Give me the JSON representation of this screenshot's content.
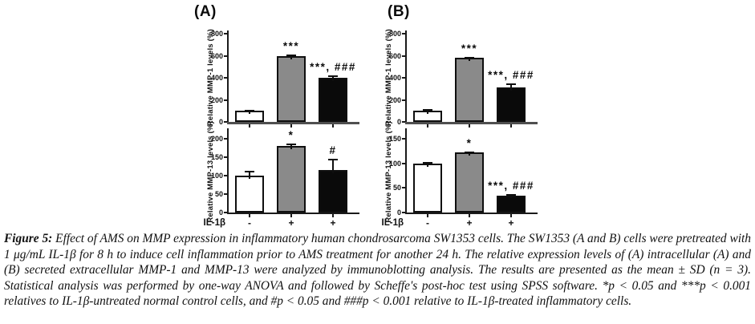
{
  "figure": {
    "panels": [
      {
        "label": "(A)",
        "x_axis_label": "IL-1β"
      },
      {
        "label": "(B)",
        "x_axis_label": "IL-1β"
      }
    ]
  },
  "chart_data": [
    {
      "id": "a-mmp1",
      "panel": "A",
      "row": "top",
      "type": "bar",
      "ylabel": "Relative MMP-1 levels (%)",
      "yticks": [
        0,
        200,
        400,
        600,
        800
      ],
      "ylim": [
        0,
        830
      ],
      "categories": [
        "-",
        "+",
        "+"
      ],
      "series": [
        {
          "name": "MMP-1 (A)",
          "values": [
            100,
            600,
            400
          ],
          "errors": [
            10,
            10,
            20
          ]
        }
      ],
      "annotations": [
        "",
        "***",
        "***, ###"
      ],
      "bar_colors": [
        "#ffffff",
        "#8a8a8a",
        "#0a0a0a"
      ],
      "legend": "none",
      "grid": false
    },
    {
      "id": "a-mmp13",
      "panel": "A",
      "row": "bottom",
      "type": "bar",
      "ylabel": "Relative MMP-13 levels (%)",
      "yticks": [
        0,
        50,
        100,
        150,
        200
      ],
      "ylim": [
        0,
        228
      ],
      "categories": [
        "-",
        "+",
        "+"
      ],
      "series": [
        {
          "name": "MMP-13 (A)",
          "values": [
            100,
            180,
            115
          ],
          "errors": [
            13,
            6,
            30
          ]
        }
      ],
      "annotations": [
        "",
        "*",
        "#"
      ],
      "bar_colors": [
        "#ffffff",
        "#8a8a8a",
        "#0a0a0a"
      ],
      "legend": "none",
      "grid": false
    },
    {
      "id": "b-mmp1",
      "panel": "B",
      "row": "top",
      "type": "bar",
      "ylabel": "Relative MMP-1 levels (%)",
      "yticks": [
        0,
        200,
        400,
        600,
        800
      ],
      "ylim": [
        0,
        830
      ],
      "categories": [
        "-",
        "+",
        "+"
      ],
      "series": [
        {
          "name": "MMP-1 (B)",
          "values": [
            105,
            585,
            315
          ],
          "errors": [
            10,
            5,
            35
          ]
        }
      ],
      "annotations": [
        "",
        "***",
        "***, ###"
      ],
      "bar_colors": [
        "#ffffff",
        "#8a8a8a",
        "#0a0a0a"
      ],
      "legend": "none",
      "grid": false
    },
    {
      "id": "b-mmp13",
      "panel": "B",
      "row": "bottom",
      "type": "bar",
      "ylabel": "Relative MMP-13 levels (%)",
      "yticks": [
        0,
        50,
        100,
        150
      ],
      "ylim": [
        0,
        171
      ],
      "categories": [
        "-",
        "+",
        "+"
      ],
      "series": [
        {
          "name": "MMP-13 (B)",
          "values": [
            100,
            122,
            35
          ],
          "errors": [
            3,
            2,
            3
          ]
        }
      ],
      "annotations": [
        "",
        "*",
        "***, ###"
      ],
      "bar_colors": [
        "#ffffff",
        "#8a8a8a",
        "#0a0a0a"
      ],
      "legend": "none",
      "grid": false
    }
  ],
  "caption": {
    "tag": "Figure 5:",
    "text": " Effect of AMS on MMP expression in inflammatory human chondrosarcoma SW1353 cells. The SW1353 (A and B) cells were pretreated with 1 μg/mL IL-1β for 8 h to induce cell inflammation prior to AMS treatment for another 24 h. The relative expression levels of (A) intracellular (A) and (B) secreted extracellular MMP-1 and MMP-13 were analyzed by immunoblotting analysis. The results are presented as the mean ± SD (n = 3). Statistical analysis was performed by one-way ANOVA and followed by Scheffe's post-hoc test using SPSS software. *p < 0.05 and ***p < 0.001 relatives to IL-1β-untreated normal control cells, and #p < 0.05 and ###p < 0.001 relative to IL-1β-treated inflammatory cells."
  },
  "colors": {
    "bar_control": "#ffffff",
    "bar_il1b_treated": "#8a8a8a",
    "bar_il1b_ams_treated": "#0a0a0a",
    "axis": "#1a1a1a"
  }
}
